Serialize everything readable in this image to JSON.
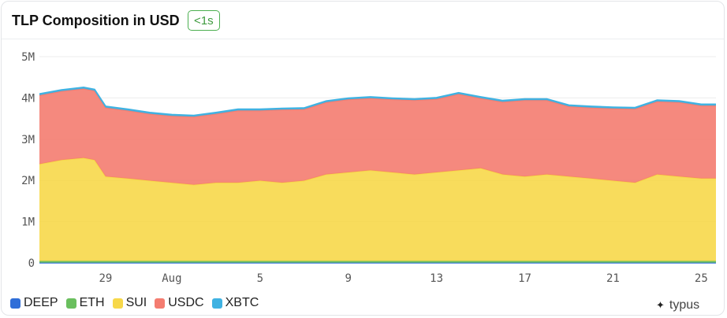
{
  "header": {
    "title": "TLP Composition in USD",
    "badge": "<1s"
  },
  "brand": {
    "name": "typus",
    "icon": "typus-logo-icon"
  },
  "chart_data": {
    "type": "area",
    "stacked": true,
    "title": "TLP Composition in USD",
    "xlabel": "",
    "ylabel": "",
    "ylim": [
      0,
      5000000
    ],
    "yticks": [
      0,
      1000000,
      2000000,
      3000000,
      4000000,
      5000000
    ],
    "ytick_labels": [
      "0",
      "1M",
      "2M",
      "3M",
      "4M",
      "5M"
    ],
    "xticks": [
      "2025-07-29",
      "2025-08-01",
      "2025-08-05",
      "2025-08-09",
      "2025-08-13",
      "2025-08-17",
      "2025-08-21",
      "2025-08-25"
    ],
    "xtick_labels": [
      "29",
      "Aug",
      "5",
      "9",
      "13",
      "17",
      "21",
      "25"
    ],
    "xlim": [
      "2025-07-26",
      "2025-08-25T16:00"
    ],
    "grid": "horizontal",
    "legend_position": "bottom-left",
    "x": [
      "2025-07-26",
      "2025-07-27",
      "2025-07-28",
      "2025-07-28T12:00",
      "2025-07-29",
      "2025-07-30",
      "2025-07-31",
      "2025-08-01",
      "2025-08-02",
      "2025-08-03",
      "2025-08-04",
      "2025-08-05",
      "2025-08-06",
      "2025-08-07",
      "2025-08-08",
      "2025-08-09",
      "2025-08-10",
      "2025-08-11",
      "2025-08-12",
      "2025-08-13",
      "2025-08-14",
      "2025-08-15",
      "2025-08-16",
      "2025-08-17",
      "2025-08-18",
      "2025-08-19",
      "2025-08-20",
      "2025-08-21",
      "2025-08-22",
      "2025-08-23",
      "2025-08-24",
      "2025-08-25",
      "2025-08-25T16:00"
    ],
    "series": [
      {
        "name": "DEEP",
        "color": "#2f6ed8",
        "values": [
          5000,
          5000,
          5000,
          5000,
          5000,
          5000,
          5000,
          5000,
          5000,
          5000,
          5000,
          5000,
          5000,
          5000,
          5000,
          5000,
          5000,
          5000,
          5000,
          5000,
          5000,
          5000,
          5000,
          5000,
          5000,
          5000,
          5000,
          5000,
          5000,
          5000,
          5000,
          5000,
          5000
        ]
      },
      {
        "name": "ETH",
        "color": "#6abf5e",
        "values": [
          40000,
          40000,
          40000,
          40000,
          40000,
          40000,
          40000,
          40000,
          40000,
          40000,
          40000,
          40000,
          40000,
          40000,
          40000,
          40000,
          40000,
          40000,
          40000,
          40000,
          40000,
          40000,
          40000,
          40000,
          40000,
          40000,
          40000,
          40000,
          40000,
          40000,
          40000,
          40000,
          40000
        ]
      },
      {
        "name": "SUI",
        "color": "#f7d84a",
        "values": [
          2350000,
          2450000,
          2500000,
          2450000,
          2050000,
          2000000,
          1950000,
          1900000,
          1850000,
          1900000,
          1900000,
          1950000,
          1900000,
          1950000,
          2100000,
          2150000,
          2200000,
          2150000,
          2100000,
          2150000,
          2200000,
          2250000,
          2100000,
          2050000,
          2100000,
          2050000,
          2000000,
          1950000,
          1900000,
          2100000,
          2050000,
          2000000,
          2000000
        ]
      },
      {
        "name": "USDC",
        "color": "#f47c70",
        "values": [
          1670000,
          1670000,
          1680000,
          1680000,
          1670000,
          1650000,
          1620000,
          1620000,
          1650000,
          1670000,
          1750000,
          1700000,
          1770000,
          1730000,
          1750000,
          1770000,
          1750000,
          1770000,
          1800000,
          1780000,
          1850000,
          1700000,
          1760000,
          1850000,
          1800000,
          1700000,
          1720000,
          1750000,
          1790000,
          1770000,
          1800000,
          1770000,
          1770000
        ]
      },
      {
        "name": "XBTC",
        "color": "#3fb2e2",
        "values": [
          30000,
          30000,
          30000,
          30000,
          30000,
          30000,
          30000,
          30000,
          30000,
          30000,
          30000,
          30000,
          30000,
          30000,
          30000,
          30000,
          30000,
          30000,
          30000,
          30000,
          30000,
          30000,
          30000,
          30000,
          30000,
          30000,
          30000,
          30000,
          30000,
          30000,
          30000,
          30000,
          30000
        ]
      }
    ]
  },
  "legend": [
    {
      "label": "DEEP",
      "color": "#2f6ed8"
    },
    {
      "label": "ETH",
      "color": "#6abf5e"
    },
    {
      "label": "SUI",
      "color": "#f7d84a"
    },
    {
      "label": "USDC",
      "color": "#f47c70"
    },
    {
      "label": "XBTC",
      "color": "#3fb2e2"
    }
  ]
}
